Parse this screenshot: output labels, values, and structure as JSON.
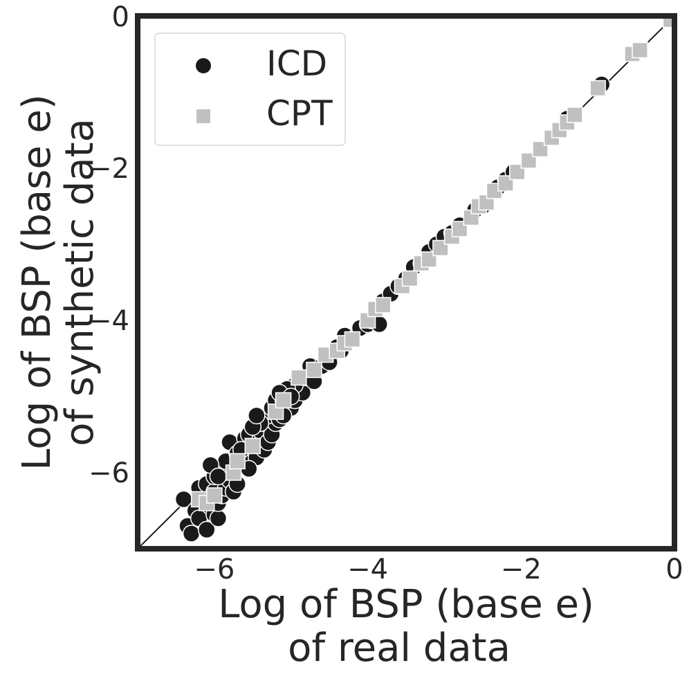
{
  "chart_data": {
    "type": "scatter",
    "xlabel": [
      "Log of BSP (base e)",
      "of real data"
    ],
    "ylabel": [
      "Log of BSP (base e)",
      "of synthetic data"
    ],
    "xlim": [
      -7,
      0
    ],
    "ylim": [
      -7,
      0
    ],
    "xticks": [
      -6,
      -4,
      -2,
      0
    ],
    "yticks": [
      -6,
      -4,
      -2,
      0
    ],
    "xtick_labels": [
      "−6",
      "−4",
      "−2",
      "0"
    ],
    "ytick_labels": [
      "−6",
      "−4",
      "−2",
      "0"
    ],
    "grid": false,
    "reference_line": "y = x",
    "legend": {
      "placement": "upper-left",
      "entries": [
        "ICD",
        "CPT"
      ]
    },
    "colors": {
      "ICD": "#1a1a1a",
      "CPT": "#c0c0c0",
      "frame": "#262626",
      "line": "#1a1a1a"
    },
    "series": [
      {
        "name": "ICD",
        "marker": "circle",
        "points": [
          [
            -6.4,
            -6.35
          ],
          [
            -6.35,
            -6.7
          ],
          [
            -6.3,
            -6.8
          ],
          [
            -6.25,
            -6.5
          ],
          [
            -6.2,
            -6.6
          ],
          [
            -6.15,
            -6.3
          ],
          [
            -6.1,
            -6.75
          ],
          [
            -6.05,
            -6.45
          ],
          [
            -6.0,
            -6.55
          ],
          [
            -5.95,
            -6.6
          ],
          [
            -6.2,
            -6.2
          ],
          [
            -6.1,
            -6.15
          ],
          [
            -6.0,
            -6.25
          ],
          [
            -5.95,
            -6.4
          ],
          [
            -6.0,
            -6.05
          ],
          [
            -5.9,
            -6.3
          ],
          [
            -5.85,
            -6.2
          ],
          [
            -5.8,
            -6.1
          ],
          [
            -5.75,
            -6.25
          ],
          [
            -5.9,
            -6.0
          ],
          [
            -5.8,
            -5.95
          ],
          [
            -5.7,
            -6.15
          ],
          [
            -5.75,
            -5.9
          ],
          [
            -5.85,
            -5.85
          ],
          [
            -6.05,
            -5.9
          ],
          [
            -5.95,
            -6.05
          ],
          [
            -5.8,
            -5.6
          ],
          [
            -5.6,
            -5.55
          ],
          [
            -5.7,
            -5.75
          ],
          [
            -5.6,
            -5.85
          ],
          [
            -5.5,
            -5.65
          ],
          [
            -5.45,
            -5.8
          ],
          [
            -5.55,
            -5.5
          ],
          [
            -5.4,
            -5.55
          ],
          [
            -5.35,
            -5.7
          ],
          [
            -5.4,
            -5.45
          ],
          [
            -5.3,
            -5.6
          ],
          [
            -5.35,
            -5.35
          ],
          [
            -5.25,
            -5.5
          ],
          [
            -5.2,
            -5.35
          ],
          [
            -5.3,
            -5.25
          ],
          [
            -5.25,
            -5.15
          ],
          [
            -5.15,
            -5.3
          ],
          [
            -5.1,
            -5.2
          ],
          [
            -5.2,
            -5.05
          ],
          [
            -5.1,
            -5.05
          ],
          [
            -5.0,
            -5.15
          ],
          [
            -5.05,
            -4.95
          ],
          [
            -4.95,
            -5.05
          ],
          [
            -4.9,
            -4.9
          ],
          [
            -4.85,
            -4.95
          ],
          [
            -4.95,
            -4.85
          ],
          [
            -5.05,
            -4.9
          ],
          [
            -5.15,
            -4.95
          ],
          [
            -5.0,
            -5.0
          ],
          [
            -5.1,
            -5.25
          ],
          [
            -5.4,
            -5.35
          ],
          [
            -4.8,
            -4.75
          ],
          [
            -4.75,
            -4.6
          ],
          [
            -4.7,
            -4.8
          ],
          [
            -4.6,
            -4.6
          ],
          [
            -4.55,
            -4.5
          ],
          [
            -4.5,
            -4.55
          ],
          [
            -4.4,
            -4.35
          ],
          [
            -4.35,
            -4.4
          ],
          [
            -4.3,
            -4.2
          ],
          [
            -4.2,
            -4.25
          ],
          [
            -4.1,
            -4.1
          ],
          [
            -4.0,
            -4.05
          ],
          [
            -3.95,
            -4.0
          ],
          [
            -3.85,
            -4.05
          ],
          [
            -3.8,
            -3.75
          ],
          [
            -3.7,
            -3.65
          ],
          [
            -3.6,
            -3.55
          ],
          [
            -3.5,
            -3.45
          ],
          [
            -3.4,
            -3.3
          ],
          [
            -3.3,
            -3.25
          ],
          [
            -3.2,
            -3.1
          ],
          [
            -3.1,
            -3.0
          ],
          [
            -3.0,
            -2.9
          ],
          [
            -2.9,
            -2.85
          ],
          [
            -2.8,
            -2.75
          ],
          [
            -2.6,
            -2.55
          ],
          [
            -2.5,
            -2.5
          ],
          [
            -2.3,
            -2.25
          ],
          [
            -2.2,
            -2.15
          ],
          [
            -2.1,
            -2.05
          ],
          [
            -1.4,
            -1.35
          ],
          [
            -0.95,
            -0.9
          ],
          [
            -5.55,
            -5.95
          ],
          [
            -5.65,
            -5.7
          ],
          [
            -5.5,
            -5.4
          ],
          [
            -5.45,
            -5.25
          ]
        ]
      },
      {
        "name": "CPT",
        "marker": "square",
        "points": [
          [
            -6.2,
            -6.35
          ],
          [
            -6.1,
            -6.4
          ],
          [
            -6.0,
            -6.3
          ],
          [
            -5.75,
            -6.0
          ],
          [
            -5.7,
            -5.85
          ],
          [
            -5.5,
            -5.65
          ],
          [
            -5.2,
            -5.2
          ],
          [
            -5.1,
            -5.05
          ],
          [
            -4.9,
            -4.75
          ],
          [
            -4.7,
            -4.65
          ],
          [
            -4.55,
            -4.45
          ],
          [
            -4.4,
            -4.4
          ],
          [
            -4.3,
            -4.3
          ],
          [
            -4.2,
            -4.25
          ],
          [
            -4.0,
            -4.0
          ],
          [
            -3.9,
            -3.85
          ],
          [
            -3.8,
            -3.8
          ],
          [
            -3.55,
            -3.55
          ],
          [
            -3.45,
            -3.45
          ],
          [
            -3.3,
            -3.25
          ],
          [
            -3.2,
            -3.2
          ],
          [
            -3.05,
            -3.05
          ],
          [
            -2.9,
            -2.9
          ],
          [
            -2.8,
            -2.8
          ],
          [
            -2.65,
            -2.65
          ],
          [
            -2.55,
            -2.5
          ],
          [
            -2.45,
            -2.45
          ],
          [
            -2.35,
            -2.3
          ],
          [
            -2.2,
            -2.2
          ],
          [
            -2.05,
            -2.05
          ],
          [
            -1.9,
            -1.9
          ],
          [
            -1.75,
            -1.75
          ],
          [
            -1.6,
            -1.6
          ],
          [
            -1.5,
            -1.5
          ],
          [
            -1.4,
            -1.4
          ],
          [
            -1.3,
            -1.3
          ],
          [
            -1.0,
            -0.95
          ],
          [
            -0.55,
            -0.5
          ],
          [
            -0.45,
            -0.45
          ],
          [
            -0.05,
            -0.05
          ]
        ]
      }
    ]
  }
}
